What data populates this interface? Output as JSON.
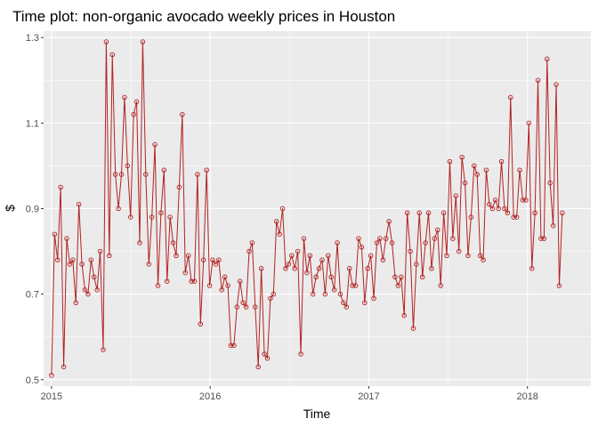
{
  "chart_data": {
    "type": "line",
    "title": "Time plot: non-organic avocado weekly prices in Houston",
    "xlabel": "Time",
    "ylabel": "$",
    "xlim": [
      2014.95,
      2018.4
    ],
    "ylim": [
      0.485,
      1.315
    ],
    "x_ticks": [
      2015,
      2016,
      2017,
      2018
    ],
    "x_tick_labels": [
      "2015",
      "2016",
      "2017",
      "2018"
    ],
    "y_ticks": [
      0.5,
      0.7,
      0.9,
      1.1,
      1.3
    ],
    "y_tick_labels": [
      "0.5",
      "0.7",
      "0.9",
      "1.1",
      "1.3"
    ],
    "grid": true,
    "colors": {
      "panel": "#ebebeb",
      "grid_major": "#ffffff",
      "series": "#b22222"
    },
    "series": [
      {
        "x_start": 2015.0,
        "x_step": 0.019165,
        "values": [
          0.51,
          0.84,
          0.78,
          0.95,
          0.53,
          0.83,
          0.77,
          0.78,
          0.68,
          0.91,
          0.77,
          0.71,
          0.7,
          0.78,
          0.74,
          0.71,
          0.8,
          0.57,
          1.29,
          0.79,
          1.26,
          0.98,
          0.9,
          0.98,
          1.16,
          1.0,
          0.88,
          1.12,
          1.15,
          0.82,
          1.29,
          0.98,
          0.77,
          0.88,
          1.05,
          0.72,
          0.89,
          0.99,
          0.73,
          0.88,
          0.82,
          0.79,
          0.95,
          1.12,
          0.75,
          0.79,
          0.73,
          0.73,
          0.98,
          0.63,
          0.78,
          0.99,
          0.72,
          0.78,
          0.77,
          0.78,
          0.71,
          0.74,
          0.72,
          0.58,
          0.58,
          0.67,
          0.73,
          0.68,
          0.67,
          0.8,
          0.82,
          0.67,
          0.53,
          0.76,
          0.56,
          0.55,
          0.69,
          0.7,
          0.87,
          0.84,
          0.9,
          0.76,
          0.77,
          0.79,
          0.76,
          0.8,
          0.56,
          0.83,
          0.75,
          0.79,
          0.7,
          0.74,
          0.76,
          0.78,
          0.7,
          0.79,
          0.74,
          0.71,
          0.82,
          0.7,
          0.68,
          0.67,
          0.76,
          0.72,
          0.72,
          0.83,
          0.81,
          0.68,
          0.76,
          0.79,
          0.69,
          0.82,
          0.83,
          0.78,
          0.83,
          0.87,
          0.82,
          0.74,
          0.72,
          0.74,
          0.65,
          0.89,
          0.8,
          0.62,
          0.77,
          0.89,
          0.74,
          0.82,
          0.89,
          0.76,
          0.83,
          0.85,
          0.72,
          0.89,
          0.79,
          1.01,
          0.83,
          0.93,
          0.8,
          1.02,
          0.96,
          0.79,
          0.88,
          1.0,
          0.98,
          0.79,
          0.78,
          0.99,
          0.91,
          0.9,
          0.92,
          0.9,
          1.01,
          0.9,
          0.89,
          1.16,
          0.88,
          0.88,
          0.99,
          0.92,
          0.92,
          1.1,
          0.76,
          0.89,
          1.2,
          0.83,
          0.83,
          1.25,
          0.96,
          0.86,
          1.19,
          0.72,
          0.89
        ]
      }
    ]
  }
}
